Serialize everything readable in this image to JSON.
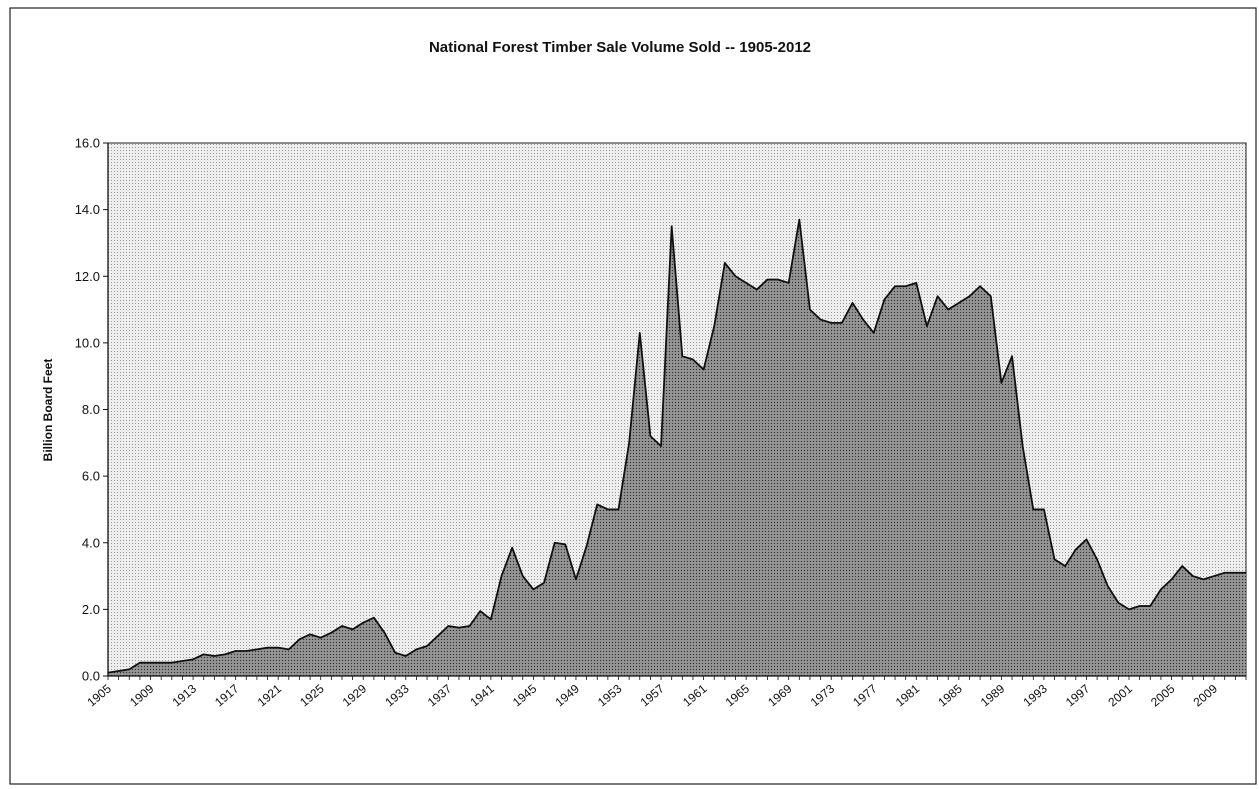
{
  "chart_data": {
    "type": "area",
    "title": "National Forest Timber Sale Volume Sold -- 1905-2012",
    "xlabel": "",
    "ylabel": "Billion Board Feet",
    "ylim": [
      0,
      16
    ],
    "xlim": [
      1905,
      2012
    ],
    "yticks": [
      "0.0",
      "2.0",
      "4.0",
      "6.0",
      "8.0",
      "10.0",
      "12.0",
      "14.0",
      "16.0"
    ],
    "xticks": [
      "1905",
      "1909",
      "1913",
      "1917",
      "1921",
      "1925",
      "1929",
      "1933",
      "1937",
      "1941",
      "1945",
      "1949",
      "1953",
      "1957",
      "1961",
      "1965",
      "1969",
      "1973",
      "1977",
      "1981",
      "1985",
      "1989",
      "1993",
      "1997",
      "2001",
      "2005",
      "2009"
    ],
    "grid": false,
    "legend": "none",
    "colors": {
      "area_fill": "#8a8a8a",
      "plot_bg": "#e2e2e2",
      "line": "#111111"
    },
    "series": [
      {
        "x": [
          1905,
          1906,
          1907,
          1908,
          1909,
          1910,
          1911,
          1912,
          1913,
          1914,
          1915,
          1916,
          1917,
          1918,
          1919,
          1920,
          1921,
          1922,
          1923,
          1924,
          1925,
          1926,
          1927,
          1928,
          1929,
          1930,
          1931,
          1932,
          1933,
          1934,
          1935,
          1936,
          1937,
          1938,
          1939,
          1940,
          1941,
          1942,
          1943,
          1944,
          1945,
          1946,
          1947,
          1948,
          1949,
          1950,
          1951,
          1952,
          1953,
          1954,
          1955,
          1956,
          1957,
          1958,
          1959,
          1960,
          1961,
          1962,
          1963,
          1964,
          1965,
          1966,
          1967,
          1968,
          1969,
          1970,
          1971,
          1972,
          1973,
          1974,
          1975,
          1976,
          1977,
          1978,
          1979,
          1980,
          1981,
          1982,
          1983,
          1984,
          1985,
          1986,
          1987,
          1988,
          1989,
          1990,
          1991,
          1992,
          1993,
          1994,
          1995,
          1996,
          1997,
          1998,
          1999,
          2000,
          2001,
          2002,
          2003,
          2004,
          2005,
          2006,
          2007,
          2008,
          2009,
          2010,
          2011,
          2012
        ],
        "values": [
          0.1,
          0.15,
          0.2,
          0.4,
          0.4,
          0.4,
          0.4,
          0.45,
          0.5,
          0.65,
          0.6,
          0.65,
          0.75,
          0.75,
          0.8,
          0.85,
          0.85,
          0.8,
          1.1,
          1.25,
          1.15,
          1.3,
          1.5,
          1.4,
          1.6,
          1.75,
          1.3,
          0.7,
          0.6,
          0.8,
          0.9,
          1.2,
          1.5,
          1.45,
          1.5,
          1.95,
          1.7,
          3.0,
          3.85,
          3.0,
          2.6,
          2.8,
          4.0,
          3.95,
          2.9,
          3.9,
          5.15,
          5.0,
          5.0,
          7.0,
          10.3,
          7.2,
          6.9,
          13.5,
          9.6,
          9.5,
          9.2,
          10.5,
          12.4,
          12.0,
          11.8,
          11.6,
          11.9,
          11.9,
          11.8,
          13.7,
          11.0,
          10.7,
          10.6,
          10.6,
          11.2,
          10.7,
          10.3,
          11.3,
          11.7,
          11.7,
          11.8,
          10.5,
          11.4,
          11.0,
          11.2,
          11.4,
          11.7,
          11.4,
          8.8,
          9.6,
          6.9,
          5.0,
          5.0,
          3.5,
          3.3,
          3.8,
          4.1,
          3.5,
          2.7,
          2.2,
          2.0,
          2.1,
          2.1,
          2.6,
          2.9,
          3.3,
          3.0,
          2.9,
          3.0,
          3.1,
          3.1,
          3.1
        ]
      }
    ]
  }
}
